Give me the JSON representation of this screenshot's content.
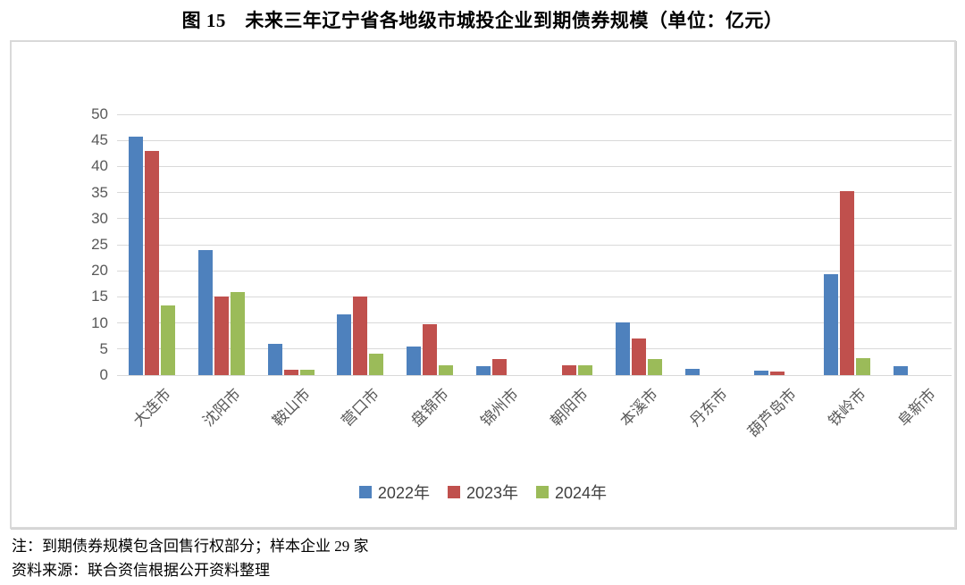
{
  "title": "图 15　未来三年辽宁省各地级市城投企业到期债券规模（单位：亿元）",
  "notes": {
    "note": "注：到期债券规模包含回售行权部分；样本企业 29 家",
    "source": "资料来源：联合资信根据公开资料整理"
  },
  "chart_data": {
    "type": "bar",
    "title": "未来三年辽宁省各地级市城投企业到期债券规模",
    "unit": "亿元",
    "categories": [
      "大连市",
      "沈阳市",
      "鞍山市",
      "营口市",
      "盘锦市",
      "锦州市",
      "朝阳市",
      "本溪市",
      "丹东市",
      "葫芦岛市",
      "铁岭市",
      "阜新市"
    ],
    "series": [
      {
        "name": "2022年",
        "color": "#4E81BD",
        "values": [
          45.7,
          23.9,
          6.0,
          11.6,
          5.4,
          1.7,
          0,
          10.1,
          1.2,
          0.8,
          19.3,
          1.7
        ]
      },
      {
        "name": "2023年",
        "color": "#C0504D",
        "values": [
          43.0,
          15.0,
          1.1,
          15.1,
          9.8,
          3.0,
          1.9,
          7.1,
          0,
          0.7,
          35.3,
          0
        ]
      },
      {
        "name": "2024年",
        "color": "#9BBB59",
        "values": [
          13.3,
          16.0,
          1.0,
          4.1,
          1.8,
          0,
          1.9,
          3.1,
          0,
          0,
          3.3,
          0
        ]
      }
    ],
    "ylabel": "",
    "xlabel": "",
    "ylim": [
      0,
      50
    ],
    "ytick_step": 5,
    "grid": true,
    "legend_position": "bottom",
    "colors": {
      "gridline": "#D9D9D9",
      "axis_text": "#595959",
      "legend_text": "#3f3f3f"
    }
  }
}
